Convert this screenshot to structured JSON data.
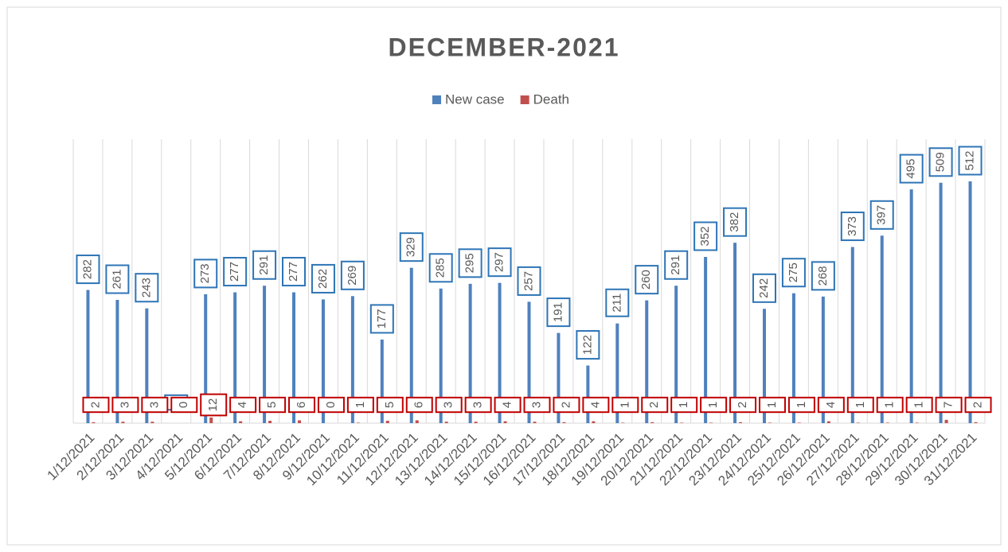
{
  "chart_data": {
    "type": "bar",
    "title": "DECEMBER-2021",
    "categories": [
      "1/12/2021",
      "2/12/2021",
      "3/12/2021",
      "4/12/2021",
      "5/12/2021",
      "6/12/2021",
      "7/12/2021",
      "8/12/2021",
      "9/12/2021",
      "10/12/2021",
      "11/12/2021",
      "12/12/2021",
      "13/12/2021",
      "14/12/2021",
      "15/12/2021",
      "16/12/2021",
      "17/12/2021",
      "18/12/2021",
      "19/12/2021",
      "20/12/2021",
      "21/12/2021",
      "22/12/2021",
      "23/12/2021",
      "24/12/2021",
      "25/12/2021",
      "26/12/2021",
      "27/12/2021",
      "28/12/2021",
      "29/12/2021",
      "30/12/2021",
      "31/12/2021"
    ],
    "series": [
      {
        "name": "New case",
        "color": "#4f81bd",
        "values": [
          282,
          261,
          243,
          0,
          273,
          277,
          291,
          277,
          262,
          269,
          177,
          329,
          285,
          295,
          297,
          257,
          191,
          122,
          211,
          260,
          291,
          352,
          382,
          242,
          275,
          268,
          373,
          397,
          495,
          509,
          512
        ]
      },
      {
        "name": "Death",
        "color": "#c0504d",
        "values": [
          2,
          3,
          3,
          0,
          12,
          4,
          5,
          6,
          0,
          1,
          5,
          6,
          3,
          3,
          4,
          3,
          2,
          4,
          1,
          2,
          1,
          1,
          2,
          1,
          1,
          4,
          1,
          1,
          1,
          7,
          2
        ]
      }
    ],
    "legend": "top"
  }
}
